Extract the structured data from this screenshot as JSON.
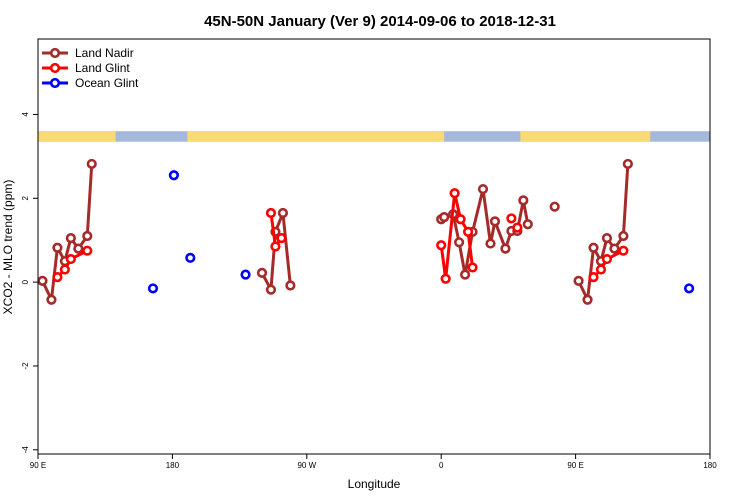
{
  "chart_data": {
    "type": "line",
    "title": "45N-50N January (Ver 9)   2014-09-06 to 2018-12-31",
    "xlabel": "Longitude",
    "ylabel": "XCO2 - MLO trend (ppm)",
    "x_ticks": [
      {
        "value": 90,
        "label": "90 E"
      },
      {
        "value": 180,
        "label": "180"
      },
      {
        "value": 270,
        "label": "90 W"
      },
      {
        "value": 360,
        "label": "0"
      },
      {
        "value": 450,
        "label": "90 E"
      },
      {
        "value": 540,
        "label": "180"
      }
    ],
    "y_ticks": [
      {
        "value": -4,
        "label": "-4"
      },
      {
        "value": -2,
        "label": "-2"
      },
      {
        "value": 0,
        "label": "0"
      },
      {
        "value": 2,
        "label": "2"
      },
      {
        "value": 4,
        "label": "4"
      }
    ],
    "xlim": [
      90,
      540
    ],
    "ylim": [
      -4.1,
      5.8
    ],
    "land_band": {
      "y_range": [
        3.35,
        3.6
      ],
      "land_color": "#fad977",
      "ocean_color": "#a3b8dc",
      "land_segments": [
        [
          90,
          142
        ],
        [
          190,
          362
        ],
        [
          413,
          500
        ]
      ]
    },
    "series": [
      {
        "name": "Land Nadir",
        "color": "#a52a2a",
        "segments": [
          [
            [
              93,
              0.03
            ],
            [
              99,
              -0.42
            ],
            [
              103,
              0.82
            ],
            [
              108,
              0.5
            ],
            [
              112,
              1.05
            ],
            [
              117,
              0.8
            ],
            [
              123,
              1.1
            ],
            [
              126,
              2.82
            ]
          ],
          [
            [
              240,
              0.22
            ],
            [
              246,
              -0.18
            ],
            [
              249,
              1.2
            ],
            [
              254,
              1.65
            ],
            [
              259,
              -0.08
            ]
          ],
          [
            [
              360,
              1.5
            ],
            [
              362,
              1.55
            ],
            [
              368,
              1.62
            ],
            [
              372,
              0.95
            ],
            [
              376,
              0.18
            ],
            [
              381,
              1.2
            ],
            [
              388,
              2.22
            ],
            [
              393,
              0.92
            ],
            [
              396,
              1.45
            ],
            [
              403,
              0.8
            ],
            [
              407,
              1.22
            ],
            [
              411,
              1.22
            ],
            [
              415,
              1.95
            ],
            [
              418,
              1.38
            ]
          ],
          [
            [
              452,
              0.03
            ],
            [
              458,
              -0.42
            ],
            [
              462,
              0.82
            ],
            [
              467,
              0.5
            ],
            [
              471,
              1.05
            ],
            [
              476,
              0.8
            ],
            [
              482,
              1.1
            ],
            [
              485,
              2.82
            ]
          ]
        ],
        "points": [
          [
            436,
            1.8
          ]
        ]
      },
      {
        "name": "Land Glint",
        "color": "#ff0000",
        "segments": [
          [
            [
              103,
              0.12
            ],
            [
              108,
              0.3
            ],
            [
              112,
              0.55
            ],
            [
              123,
              0.75
            ]
          ],
          [
            [
              246,
              1.65
            ],
            [
              249,
              0.85
            ],
            [
              253,
              1.05
            ]
          ],
          [
            [
              360,
              0.88
            ],
            [
              363,
              0.08
            ],
            [
              369,
              2.12
            ],
            [
              373,
              1.5
            ],
            [
              378,
              1.2
            ],
            [
              381,
              0.35
            ]
          ],
          [
            [
              462,
              0.12
            ],
            [
              467,
              0.3
            ],
            [
              471,
              0.55
            ],
            [
              482,
              0.75
            ]
          ]
        ],
        "points": [
          [
            407,
            1.52
          ],
          [
            411,
            1.3
          ]
        ]
      },
      {
        "name": "Ocean Glint",
        "color": "#0000ff",
        "segments": [],
        "points": [
          [
            167,
            -0.15
          ],
          [
            181,
            2.55
          ],
          [
            192,
            0.58
          ],
          [
            229,
            0.18
          ],
          [
            526,
            -0.15
          ]
        ]
      }
    ],
    "legend": {
      "position": "top-left",
      "entries": [
        "Land Nadir",
        "Land Glint",
        "Ocean Glint"
      ]
    }
  }
}
